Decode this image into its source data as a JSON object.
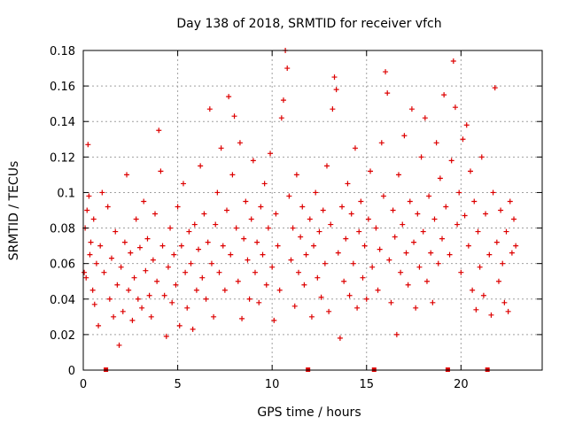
{
  "chart_data": {
    "type": "scatter",
    "title": "Day 138 of 2018, SRMTID for receiver vfch",
    "xlabel": "GPS time / hours",
    "ylabel": "SRMTID / TECUs",
    "xlim": [
      0,
      24.3
    ],
    "ylim": [
      0,
      0.18
    ],
    "xticks": [
      0,
      5,
      10,
      15,
      20
    ],
    "yticks": [
      0,
      0.02,
      0.04,
      0.06,
      0.08,
      0.1,
      0.12,
      0.14,
      0.16,
      0.18
    ],
    "xtick_labels": [
      "0",
      "5",
      "10",
      "15",
      "20"
    ],
    "ytick_labels": [
      "0",
      "0.02",
      "0.04",
      "0.06",
      "0.08",
      "0.1",
      "0.12",
      "0.14",
      "0.16",
      "0.18"
    ],
    "grid": true,
    "legend": "none",
    "marker": "plus",
    "point_color": "#dd0000",
    "gap_marker_color": "#dd0000",
    "data_gaps_x": [
      1.2,
      11.9,
      15.4,
      19.3,
      21.4
    ],
    "series": [
      {
        "name": "",
        "x_range": [
          0,
          22.9
        ],
        "y_range": [
          0.014,
          0.18
        ],
        "points": [
          [
            0.05,
            0.055
          ],
          [
            0.1,
            0.08
          ],
          [
            0.15,
            0.052
          ],
          [
            0.2,
            0.09
          ],
          [
            0.25,
            0.127
          ],
          [
            0.3,
            0.098
          ],
          [
            0.35,
            0.065
          ],
          [
            0.4,
            0.072
          ],
          [
            0.5,
            0.045
          ],
          [
            0.55,
            0.085
          ],
          [
            0.6,
            0.037
          ],
          [
            0.7,
            0.06
          ],
          [
            0.8,
            0.025
          ],
          [
            0.9,
            0.07
          ],
          [
            1.0,
            0.1
          ],
          [
            1.1,
            0.055
          ],
          [
            1.3,
            0.092
          ],
          [
            1.4,
            0.04
          ],
          [
            1.5,
            0.063
          ],
          [
            1.6,
            0.03
          ],
          [
            1.7,
            0.078
          ],
          [
            1.8,
            0.048
          ],
          [
            1.9,
            0.014
          ],
          [
            2.0,
            0.058
          ],
          [
            2.1,
            0.033
          ],
          [
            2.2,
            0.072
          ],
          [
            2.3,
            0.11
          ],
          [
            2.4,
            0.045
          ],
          [
            2.5,
            0.066
          ],
          [
            2.6,
            0.028
          ],
          [
            2.7,
            0.052
          ],
          [
            2.8,
            0.085
          ],
          [
            2.9,
            0.04
          ],
          [
            3.0,
            0.069
          ],
          [
            3.1,
            0.035
          ],
          [
            3.2,
            0.095
          ],
          [
            3.3,
            0.056
          ],
          [
            3.4,
            0.074
          ],
          [
            3.5,
            0.042
          ],
          [
            3.6,
            0.03
          ],
          [
            3.7,
            0.062
          ],
          [
            3.8,
            0.088
          ],
          [
            3.9,
            0.05
          ],
          [
            4.0,
            0.135
          ],
          [
            4.1,
            0.112
          ],
          [
            4.2,
            0.07
          ],
          [
            4.3,
            0.042
          ],
          [
            4.4,
            0.019
          ],
          [
            4.5,
            0.058
          ],
          [
            4.6,
            0.08
          ],
          [
            4.7,
            0.038
          ],
          [
            4.8,
            0.065
          ],
          [
            4.9,
            0.048
          ],
          [
            5.0,
            0.092
          ],
          [
            5.1,
            0.025
          ],
          [
            5.2,
            0.07
          ],
          [
            5.3,
            0.105
          ],
          [
            5.4,
            0.055
          ],
          [
            5.5,
            0.035
          ],
          [
            5.6,
            0.078
          ],
          [
            5.7,
            0.06
          ],
          [
            5.8,
            0.023
          ],
          [
            5.9,
            0.082
          ],
          [
            6.0,
            0.045
          ],
          [
            6.1,
            0.068
          ],
          [
            6.2,
            0.115
          ],
          [
            6.3,
            0.052
          ],
          [
            6.4,
            0.088
          ],
          [
            6.5,
            0.04
          ],
          [
            6.6,
            0.072
          ],
          [
            6.7,
            0.147
          ],
          [
            6.8,
            0.06
          ],
          [
            6.9,
            0.03
          ],
          [
            7.0,
            0.082
          ],
          [
            7.1,
            0.1
          ],
          [
            7.2,
            0.055
          ],
          [
            7.3,
            0.125
          ],
          [
            7.4,
            0.07
          ],
          [
            7.5,
            0.045
          ],
          [
            7.6,
            0.09
          ],
          [
            7.7,
            0.154
          ],
          [
            7.8,
            0.065
          ],
          [
            7.9,
            0.11
          ],
          [
            8.0,
            0.143
          ],
          [
            8.1,
            0.08
          ],
          [
            8.2,
            0.05
          ],
          [
            8.3,
            0.128
          ],
          [
            8.4,
            0.029
          ],
          [
            8.5,
            0.074
          ],
          [
            8.6,
            0.095
          ],
          [
            8.7,
            0.062
          ],
          [
            8.8,
            0.04
          ],
          [
            8.9,
            0.085
          ],
          [
            9.0,
            0.118
          ],
          [
            9.1,
            0.055
          ],
          [
            9.2,
            0.072
          ],
          [
            9.3,
            0.038
          ],
          [
            9.4,
            0.092
          ],
          [
            9.5,
            0.065
          ],
          [
            9.6,
            0.105
          ],
          [
            9.7,
            0.048
          ],
          [
            9.8,
            0.08
          ],
          [
            9.9,
            0.122
          ],
          [
            10.0,
            0.058
          ],
          [
            10.1,
            0.028
          ],
          [
            10.2,
            0.088
          ],
          [
            10.3,
            0.07
          ],
          [
            10.4,
            0.045
          ],
          [
            10.5,
            0.142
          ],
          [
            10.6,
            0.152
          ],
          [
            10.7,
            0.18
          ],
          [
            10.8,
            0.17
          ],
          [
            10.9,
            0.098
          ],
          [
            11.0,
            0.062
          ],
          [
            11.1,
            0.08
          ],
          [
            11.2,
            0.036
          ],
          [
            11.3,
            0.11
          ],
          [
            11.4,
            0.055
          ],
          [
            11.5,
            0.075
          ],
          [
            11.6,
            0.092
          ],
          [
            11.7,
            0.048
          ],
          [
            11.8,
            0.065
          ],
          [
            12.0,
            0.085
          ],
          [
            12.1,
            0.03
          ],
          [
            12.2,
            0.07
          ],
          [
            12.3,
            0.1
          ],
          [
            12.4,
            0.052
          ],
          [
            12.5,
            0.078
          ],
          [
            12.6,
            0.041
          ],
          [
            12.7,
            0.09
          ],
          [
            12.8,
            0.06
          ],
          [
            12.9,
            0.115
          ],
          [
            13.0,
            0.033
          ],
          [
            13.1,
            0.082
          ],
          [
            13.2,
            0.147
          ],
          [
            13.3,
            0.165
          ],
          [
            13.4,
            0.158
          ],
          [
            13.5,
            0.066
          ],
          [
            13.6,
            0.018
          ],
          [
            13.7,
            0.092
          ],
          [
            13.8,
            0.05
          ],
          [
            13.9,
            0.074
          ],
          [
            14.0,
            0.105
          ],
          [
            14.1,
            0.042
          ],
          [
            14.2,
            0.088
          ],
          [
            14.3,
            0.06
          ],
          [
            14.4,
            0.125
          ],
          [
            14.5,
            0.035
          ],
          [
            14.6,
            0.078
          ],
          [
            14.7,
            0.095
          ],
          [
            14.8,
            0.052
          ],
          [
            14.9,
            0.07
          ],
          [
            15.0,
            0.04
          ],
          [
            15.1,
            0.085
          ],
          [
            15.2,
            0.112
          ],
          [
            15.3,
            0.058
          ],
          [
            15.5,
            0.08
          ],
          [
            15.6,
            0.045
          ],
          [
            15.7,
            0.068
          ],
          [
            15.8,
            0.128
          ],
          [
            15.9,
            0.098
          ],
          [
            16.0,
            0.168
          ],
          [
            16.1,
            0.156
          ],
          [
            16.2,
            0.062
          ],
          [
            16.3,
            0.038
          ],
          [
            16.4,
            0.09
          ],
          [
            16.5,
            0.075
          ],
          [
            16.6,
            0.02
          ],
          [
            16.7,
            0.11
          ],
          [
            16.8,
            0.055
          ],
          [
            16.9,
            0.082
          ],
          [
            17.0,
            0.132
          ],
          [
            17.1,
            0.066
          ],
          [
            17.2,
            0.048
          ],
          [
            17.3,
            0.095
          ],
          [
            17.4,
            0.147
          ],
          [
            17.5,
            0.072
          ],
          [
            17.6,
            0.035
          ],
          [
            17.7,
            0.088
          ],
          [
            17.8,
            0.058
          ],
          [
            17.9,
            0.12
          ],
          [
            18.0,
            0.078
          ],
          [
            18.1,
            0.142
          ],
          [
            18.2,
            0.05
          ],
          [
            18.3,
            0.098
          ],
          [
            18.4,
            0.066
          ],
          [
            18.5,
            0.038
          ],
          [
            18.6,
            0.085
          ],
          [
            18.7,
            0.128
          ],
          [
            18.8,
            0.06
          ],
          [
            18.9,
            0.108
          ],
          [
            19.0,
            0.074
          ],
          [
            19.1,
            0.155
          ],
          [
            19.2,
            0.092
          ],
          [
            19.4,
            0.065
          ],
          [
            19.5,
            0.118
          ],
          [
            19.6,
            0.174
          ],
          [
            19.7,
            0.148
          ],
          [
            19.8,
            0.082
          ],
          [
            19.9,
            0.1
          ],
          [
            20.0,
            0.055
          ],
          [
            20.1,
            0.13
          ],
          [
            20.2,
            0.087
          ],
          [
            20.3,
            0.138
          ],
          [
            20.4,
            0.07
          ],
          [
            20.5,
            0.112
          ],
          [
            20.6,
            0.045
          ],
          [
            20.7,
            0.095
          ],
          [
            20.8,
            0.034
          ],
          [
            20.9,
            0.078
          ],
          [
            21.0,
            0.058
          ],
          [
            21.1,
            0.12
          ],
          [
            21.2,
            0.042
          ],
          [
            21.3,
            0.088
          ],
          [
            21.5,
            0.065
          ],
          [
            21.6,
            0.031
          ],
          [
            21.7,
            0.1
          ],
          [
            21.8,
            0.159
          ],
          [
            21.9,
            0.072
          ],
          [
            22.0,
            0.05
          ],
          [
            22.1,
            0.09
          ],
          [
            22.2,
            0.06
          ],
          [
            22.3,
            0.038
          ],
          [
            22.4,
            0.078
          ],
          [
            22.5,
            0.033
          ],
          [
            22.6,
            0.095
          ],
          [
            22.7,
            0.066
          ],
          [
            22.8,
            0.085
          ],
          [
            22.9,
            0.07
          ]
        ]
      }
    ]
  }
}
